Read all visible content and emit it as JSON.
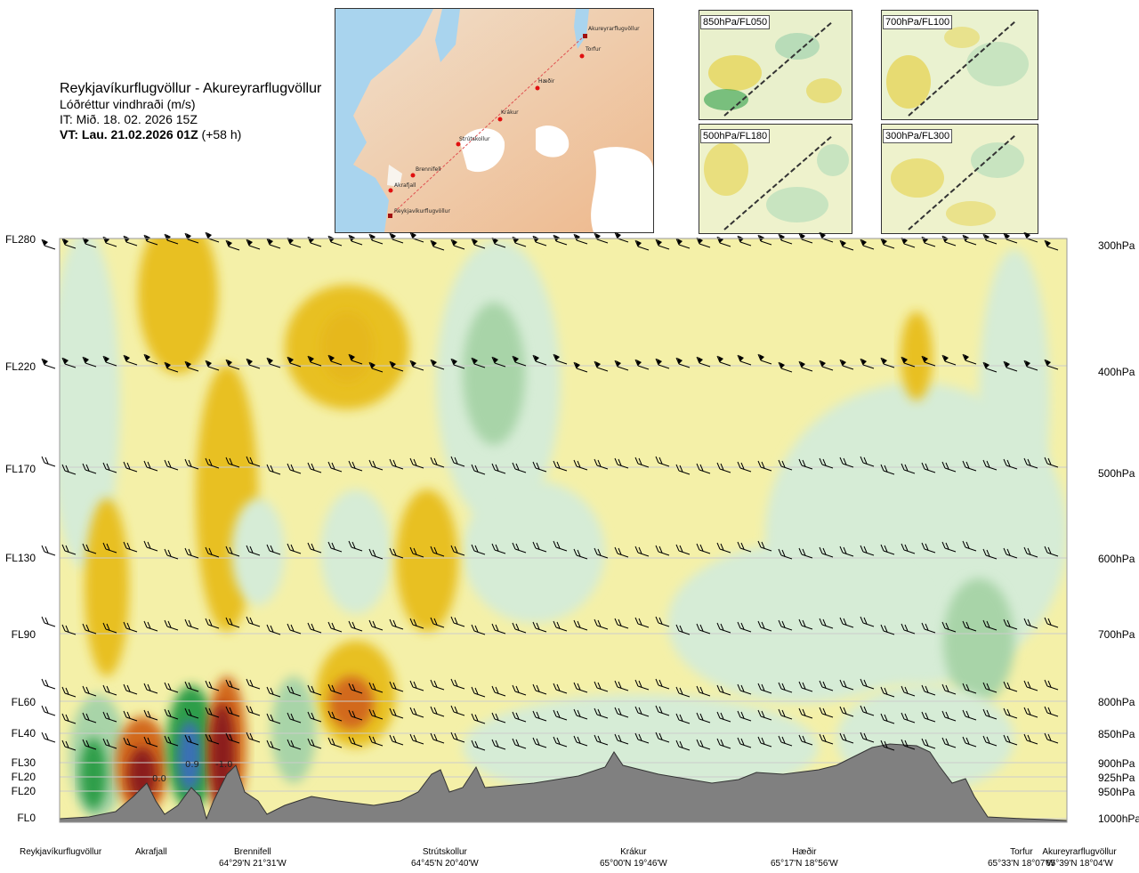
{
  "header": {
    "title": "Reykjavíkurflugvöllur - Akureyrarflugvöllur",
    "subtitle": "Lóðréttur vindhraði (m/s)",
    "it_line": "IT: Mið. 18. 02. 2026 15Z",
    "vt_line_bold": "VT: Lau. 21.02.2026 01Z",
    "vt_line_rest": " (+58 h)"
  },
  "route_map": {
    "stations": [
      "Akureyrarflugvöllur",
      "Torfur",
      "Hæðir",
      "Krákur",
      "Strútskollur",
      "Brennifell",
      "Akrafjall",
      "Reykjavíkurflugvöllur"
    ]
  },
  "panels": [
    {
      "label": "850hPa/FL050"
    },
    {
      "label": "700hPa/FL100"
    },
    {
      "label": "500hPa/FL180"
    },
    {
      "label": "300hPa/FL300"
    }
  ],
  "chart_data": {
    "type": "heatmap",
    "title": "Lóðréttur vindhraði (m/s)",
    "left_axis_labels": [
      "FL280",
      "FL220",
      "FL170",
      "FL130",
      "FL90",
      "FL60",
      "FL40",
      "FL30",
      "FL20",
      "FL20",
      "FL0"
    ],
    "right_axis_labels": [
      "300hPa",
      "400hPa",
      "500hPa",
      "600hPa",
      "700hPa",
      "800hPa",
      "850hPa",
      "900hPa",
      "925hPa",
      "950hPa",
      "1000hPa"
    ],
    "pressure_levels_hPa": [
      300,
      400,
      500,
      600,
      700,
      800,
      850,
      900,
      925,
      950,
      1000
    ],
    "locations": [
      {
        "name": "Reykjavíkurflugvöllur",
        "coord": ""
      },
      {
        "name": "Akrafjall",
        "coord": ""
      },
      {
        "name": "Brennifell",
        "coord": "64°29'N 21°31'W"
      },
      {
        "name": "Strútskollur",
        "coord": "64°45'N 20°40'W"
      },
      {
        "name": "Krákur",
        "coord": "65°00'N 19°46'W"
      },
      {
        "name": "Hæðir",
        "coord": "65°17'N 18°56'W"
      },
      {
        "name": "Torfur",
        "coord": "65°33'N 18°07'W"
      },
      {
        "name": "Akureyrarflugvöllur",
        "coord": "65°39'N 18°04'W"
      }
    ],
    "annotations": [
      "0.0",
      "0.9",
      "-1.0"
    ],
    "colors": {
      "strong_down": "#8b1a1a",
      "down": "#d2691e",
      "weak_down": "#e8c020",
      "faint_down": "#f2ec9c",
      "neutral": "#fafae0",
      "faint_up": "#d6ecd6",
      "weak_up": "#a8d4a8",
      "up": "#2e9e48",
      "strong_up": "#3b6fb6",
      "terrain": "#808080"
    }
  }
}
